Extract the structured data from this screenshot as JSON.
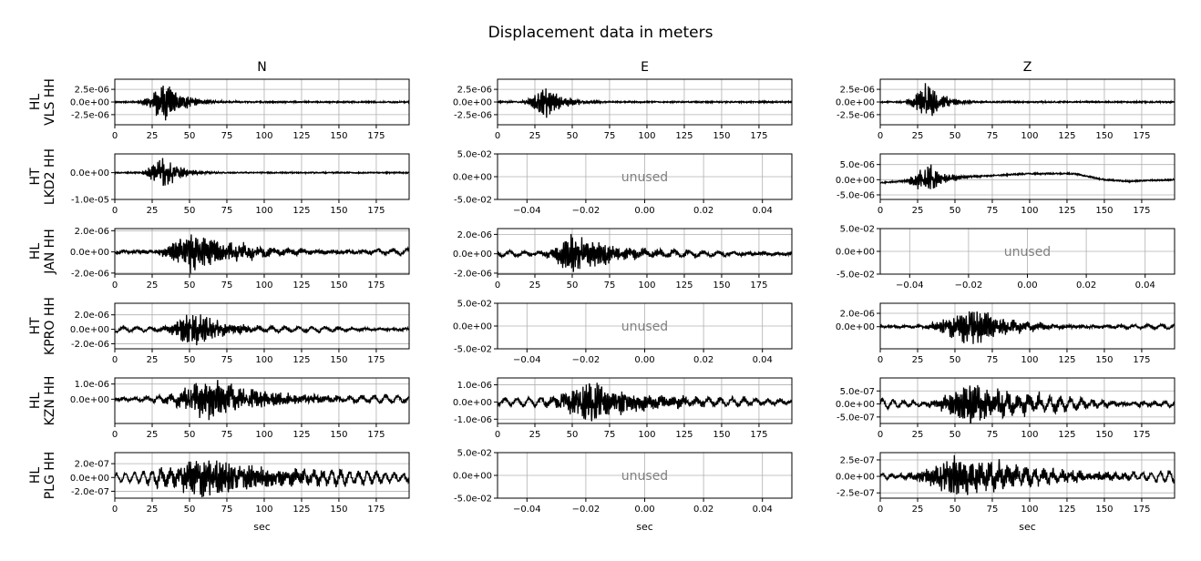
{
  "title": "Displacement data in meters",
  "column_titles": [
    "N",
    "E",
    "Z"
  ],
  "station_labels": [
    [
      "HL",
      "VLS HH"
    ],
    [
      "HT",
      "LKD2 HH"
    ],
    [
      "HL",
      "JAN HH"
    ],
    [
      "HT",
      "KPRO HH"
    ],
    [
      "HL",
      "KZN HH"
    ],
    [
      "HL",
      "PLG HH"
    ]
  ],
  "xlabel": "sec",
  "unused_label": "unused",
  "colors": {
    "trace": "#000000",
    "grid": "#b0b0b0",
    "unused_text": "#808080"
  },
  "chart_data": {
    "type": "line",
    "title": "Displacement data in meters",
    "grid": true,
    "x_ticks_time": [
      0,
      25,
      50,
      75,
      100,
      125,
      150,
      175
    ],
    "x_ticks_unused": [
      -0.04,
      -0.02,
      0.0,
      0.02,
      0.04
    ],
    "x_tick_labels_unused": [
      "−0.04",
      "−0.02",
      "0.00",
      "0.02",
      "0.04"
    ],
    "panels": [
      {
        "row": 0,
        "col": "N",
        "used": true,
        "xlim": [
          0,
          197
        ],
        "ylim": [
          -4.5e-06,
          4.5e-06
        ],
        "yticks": [
          -2.5e-06,
          0,
          2.5e-06
        ],
        "ytick_labels": [
          "-2.5e-06",
          "0.0e+00",
          "2.5e-06"
        ],
        "signal": {
          "onset": 14,
          "peak_t": 33,
          "peak_amp": 4.5e-06,
          "decay": 12,
          "noise": 1.2e-07,
          "bg_amp": 0,
          "bg_period": 12,
          "drift": []
        }
      },
      {
        "row": 0,
        "col": "E",
        "used": true,
        "xlim": [
          0,
          197
        ],
        "ylim": [
          -4.5e-06,
          4.5e-06
        ],
        "yticks": [
          -2.5e-06,
          0,
          2.5e-06
        ],
        "ytick_labels": [
          "-2.5e-06",
          "0.0e+00",
          "2.5e-06"
        ],
        "signal": {
          "onset": 14,
          "peak_t": 32,
          "peak_amp": 3.5e-06,
          "decay": 12,
          "noise": 1.2e-07,
          "bg_amp": 0,
          "bg_period": 12,
          "drift": []
        }
      },
      {
        "row": 0,
        "col": "Z",
        "used": true,
        "xlim": [
          0,
          197
        ],
        "ylim": [
          -4.5e-06,
          4.5e-06
        ],
        "yticks": [
          -2.5e-06,
          0,
          2.5e-06
        ],
        "ytick_labels": [
          "-2.5e-06",
          "0.0e+00",
          "2.5e-06"
        ],
        "signal": {
          "onset": 14,
          "peak_t": 31,
          "peak_amp": 4.2e-06,
          "decay": 10,
          "noise": 1.2e-07,
          "bg_amp": 0,
          "bg_period": 12,
          "drift": []
        }
      },
      {
        "row": 1,
        "col": "N",
        "used": true,
        "xlim": [
          0,
          197
        ],
        "ylim": [
          -1e-05,
          7e-06
        ],
        "yticks": [
          -1e-05,
          0
        ],
        "ytick_labels": [
          "-1.0e-05",
          "0.0e+00"
        ],
        "signal": {
          "onset": 14,
          "peak_t": 33,
          "peak_amp": 7e-06,
          "decay": 10,
          "noise": 2e-07,
          "bg_amp": 0,
          "bg_period": 12,
          "drift": []
        }
      },
      {
        "row": 1,
        "col": "E",
        "used": false,
        "xlim": [
          -0.05,
          0.05
        ],
        "ylim": [
          -0.05,
          0.05
        ],
        "yticks": [
          -0.05,
          0,
          0.05
        ],
        "ytick_labels": [
          "-5.0e-02",
          "0.0e+00",
          "5.0e-02"
        ]
      },
      {
        "row": 1,
        "col": "Z",
        "used": true,
        "xlim": [
          0,
          197
        ],
        "ylim": [
          -6.5e-06,
          8.5e-06
        ],
        "yticks": [
          -5e-06,
          0,
          5e-06
        ],
        "ytick_labels": [
          "-5.0e-06",
          "0.0e+00",
          "5.0e-06"
        ],
        "signal": {
          "onset": 14,
          "peak_t": 32,
          "peak_amp": 6e-06,
          "decay": 10,
          "noise": 2e-07,
          "bg_amp": 0,
          "bg_period": 12,
          "drift": [
            [
              0,
              -1e-06
            ],
            [
              30,
              0
            ],
            [
              60,
              1e-06
            ],
            [
              100,
              2e-06
            ],
            [
              130,
              2e-06
            ],
            [
              150,
              0
            ],
            [
              165,
              -5e-07
            ],
            [
              197,
              0
            ]
          ]
        }
      },
      {
        "row": 2,
        "col": "N",
        "used": true,
        "xlim": [
          0,
          197
        ],
        "ylim": [
          -2.1e-06,
          2.2e-06
        ],
        "yticks": [
          -2e-06,
          0,
          2e-06
        ],
        "ytick_labels": [
          "-2.0e-06",
          "0.0e+00",
          "2.0e-06"
        ],
        "signal": {
          "onset": 25,
          "peak_t": 50,
          "peak_amp": 2.2e-06,
          "decay": 30,
          "noise": 1.5e-07,
          "bg_amp": 2.5e-07,
          "bg_period": 10,
          "drift": []
        }
      },
      {
        "row": 2,
        "col": "E",
        "used": true,
        "xlim": [
          0,
          197
        ],
        "ylim": [
          -2.1e-06,
          2.6e-06
        ],
        "yticks": [
          -2e-06,
          0,
          2e-06
        ],
        "ytick_labels": [
          "-2.0e-06",
          "0.0e+00",
          "2.0e-06"
        ],
        "signal": {
          "onset": 25,
          "peak_t": 50,
          "peak_amp": 2.2e-06,
          "decay": 30,
          "noise": 1.5e-07,
          "bg_amp": 2.5e-07,
          "bg_period": 10,
          "drift": []
        }
      },
      {
        "row": 2,
        "col": "Z",
        "used": false,
        "xlim": [
          -0.05,
          0.05
        ],
        "ylim": [
          -0.05,
          0.05
        ],
        "yticks": [
          -0.05,
          0,
          0.05
        ],
        "ytick_labels": [
          "-5.0e-02",
          "0.0e+00",
          "5.0e-02"
        ]
      },
      {
        "row": 3,
        "col": "N",
        "used": true,
        "xlim": [
          0,
          197
        ],
        "ylim": [
          -2.7e-06,
          3.6e-06
        ],
        "yticks": [
          -2e-06,
          0,
          2e-06
        ],
        "ytick_labels": [
          "-2.0e-06",
          "0.0e+00",
          "2.0e-06"
        ],
        "signal": {
          "onset": 28,
          "peak_t": 52,
          "peak_amp": 3e-06,
          "decay": 20,
          "noise": 1.5e-07,
          "bg_amp": 3e-07,
          "bg_period": 9,
          "drift": []
        }
      },
      {
        "row": 3,
        "col": "E",
        "used": false,
        "xlim": [
          -0.05,
          0.05
        ],
        "ylim": [
          -0.05,
          0.05
        ],
        "yticks": [
          -0.05,
          0,
          0.05
        ],
        "ytick_labels": [
          "-5.0e-02",
          "0.0e+00",
          "5.0e-02"
        ]
      },
      {
        "row": 3,
        "col": "Z",
        "used": true,
        "xlim": [
          0,
          197
        ],
        "ylim": [
          -3.3e-06,
          3.5e-06
        ],
        "yticks": [
          0,
          2e-06
        ],
        "ytick_labels": [
          "0.0e+00",
          "2.0e-06"
        ],
        "signal": {
          "onset": 25,
          "peak_t": 60,
          "peak_amp": 3.2e-06,
          "decay": 25,
          "noise": 1.5e-07,
          "bg_amp": 3e-07,
          "bg_period": 9,
          "drift": []
        }
      },
      {
        "row": 4,
        "col": "N",
        "used": true,
        "xlim": [
          0,
          197
        ],
        "ylim": [
          -1.6e-06,
          1.4e-06
        ],
        "yticks": [
          0,
          1e-06
        ],
        "ytick_labels": [
          "0.0e+00",
          "1.0e-06"
        ],
        "signal": {
          "onset": 20,
          "peak_t": 62,
          "peak_amp": 1.4e-06,
          "decay": 40,
          "noise": 1e-07,
          "bg_amp": 2e-07,
          "bg_period": 8,
          "drift": []
        }
      },
      {
        "row": 4,
        "col": "E",
        "used": true,
        "xlim": [
          0,
          197
        ],
        "ylim": [
          -1.25e-06,
          1.4e-06
        ],
        "yticks": [
          -1e-06,
          0,
          1e-06
        ],
        "ytick_labels": [
          "-1.0e-06",
          "0.0e+00",
          "1.0e-06"
        ],
        "signal": {
          "onset": 20,
          "peak_t": 62,
          "peak_amp": 1.2e-06,
          "decay": 40,
          "noise": 1e-07,
          "bg_amp": 2e-07,
          "bg_period": 8,
          "drift": []
        }
      },
      {
        "row": 4,
        "col": "Z",
        "used": true,
        "xlim": [
          0,
          197
        ],
        "ylim": [
          -7.5e-07,
          1e-06
        ],
        "yticks": [
          -5e-07,
          0,
          5e-07
        ],
        "ytick_labels": [
          "-5.0e-07",
          "0.0e+00",
          "5.0e-07"
        ],
        "signal": {
          "onset": 25,
          "peak_t": 60,
          "peak_amp": 8e-07,
          "decay": 40,
          "noise": 6e-08,
          "bg_amp": 2e-07,
          "bg_period": 7,
          "drift": []
        }
      },
      {
        "row": 5,
        "col": "N",
        "used": true,
        "xlim": [
          0,
          197
        ],
        "ylim": [
          -3e-07,
          3.6e-07
        ],
        "yticks": [
          -2e-07,
          0,
          2e-07
        ],
        "ytick_labels": [
          "-2.0e-07",
          "0.0e+00",
          "2.0e-07"
        ],
        "signal": {
          "onset": 5,
          "peak_t": 60,
          "peak_amp": 3e-07,
          "decay": 60,
          "noise": 2e-08,
          "bg_amp": 8e-08,
          "bg_period": 6,
          "drift": []
        }
      },
      {
        "row": 5,
        "col": "E",
        "used": false,
        "xlim": [
          -0.05,
          0.05
        ],
        "ylim": [
          -0.05,
          0.05
        ],
        "yticks": [
          -0.05,
          0,
          0.05
        ],
        "ytick_labels": [
          "-5.0e-02",
          "0.0e+00",
          "5.0e-02"
        ]
      },
      {
        "row": 5,
        "col": "Z",
        "used": true,
        "xlim": [
          0,
          197
        ],
        "ylim": [
          -3.3e-07,
          3.6e-07
        ],
        "yticks": [
          -2.5e-07,
          0,
          2.5e-07
        ],
        "ytick_labels": [
          "-2.5e-07",
          "0.0e+00",
          "2.5e-07"
        ],
        "signal": {
          "onset": 5,
          "peak_t": 50,
          "peak_amp": 3e-07,
          "decay": 60,
          "noise": 2e-08,
          "bg_amp": 8e-08,
          "bg_period": 6,
          "drift": []
        }
      }
    ]
  }
}
